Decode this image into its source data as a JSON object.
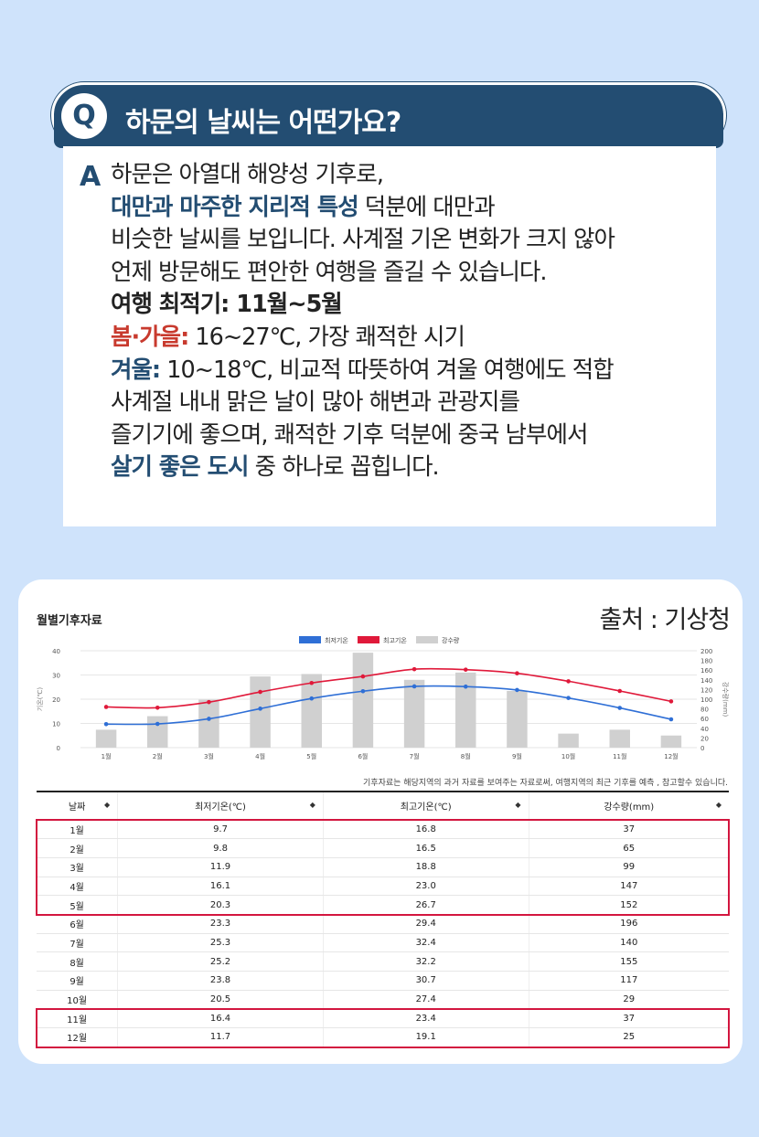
{
  "question": {
    "badge": "Q",
    "title": "하문의 날씨는 어떤가요?"
  },
  "answer": {
    "badge": "A",
    "line1": "하문은 아열대 해양성 기후로,",
    "line2_bold": "대만과 마주한 지리적 특성",
    "line2_rest": " 덕분에 대만과",
    "line3": "비슷한 날씨를 보입니다. 사계절 기온 변화가 크지 않아",
    "line4": "언제 방문해도 편안한 여행을 즐길 수 있습니다.",
    "line5": "여행 최적기: 11월~5월",
    "line6_bold": "봄·가을:",
    "line6_rest": " 16~27℃, 가장 쾌적한 시기",
    "line7_bold": "겨울:",
    "line7_rest": " 10~18℃, 비교적 따뜻하여 겨울 여행에도 적합",
    "line8": "사계절 내내 맑은 날이 많아 해변과 관광지를",
    "line9": "즐기기에 좋으며, 쾌적한 기후 덕분에 중국 남부에서",
    "line10_bold": "살기 좋은 도시",
    "line10_rest": " 중 하나로 꼽힙니다."
  },
  "chart_card": {
    "title": "월별기후자료",
    "source": "출처 : 기상청",
    "note": "기후자료는 해당지역의 과거 자료를 보여주는 자료로써, 여행지역의 최근 기후를 예측 , 참고할수 있습니다."
  },
  "colors": {
    "min_temp": "#2f6fd6",
    "max_temp": "#e0193a",
    "precip": "#d0d0d0",
    "navy": "#234d72",
    "highlight": "#d3163f"
  },
  "chart_data": {
    "type": "bar",
    "categories": [
      "1월",
      "2월",
      "3월",
      "4월",
      "5월",
      "6월",
      "7월",
      "8월",
      "9월",
      "10월",
      "11월",
      "12월"
    ],
    "series": [
      {
        "name": "최저기온",
        "type": "line",
        "axis": "left",
        "values": [
          9.7,
          9.8,
          11.9,
          16.1,
          20.3,
          23.3,
          25.3,
          25.2,
          23.8,
          20.5,
          16.4,
          11.7
        ]
      },
      {
        "name": "최고기온",
        "type": "line",
        "axis": "left",
        "values": [
          16.8,
          16.5,
          18.8,
          23.0,
          26.7,
          29.4,
          32.4,
          32.2,
          30.7,
          27.4,
          23.4,
          19.1
        ]
      },
      {
        "name": "강수량",
        "type": "bar",
        "axis": "right",
        "values": [
          37,
          65,
          99,
          147,
          152,
          196,
          140,
          155,
          117,
          29,
          37,
          25
        ]
      }
    ],
    "ylabel": "기온(℃)",
    "y2label": "강수량(mm)",
    "ylim": [
      0,
      40
    ],
    "y2lim": [
      0,
      200
    ],
    "yticks": [
      "0",
      "10",
      "20",
      "30",
      "40"
    ],
    "y2ticks": [
      "0",
      "20",
      "40",
      "60",
      "80",
      "100",
      "120",
      "140",
      "160",
      "180",
      "200"
    ],
    "legend_position": "top-center",
    "grid": true
  },
  "table": {
    "headers": [
      "날짜",
      "최저기온(℃)",
      "최고기온(℃)",
      "강수량(mm)"
    ],
    "sort_glyph": "◆",
    "rows": [
      [
        "1월",
        "9.7",
        "16.8",
        "37"
      ],
      [
        "2월",
        "9.8",
        "16.5",
        "65"
      ],
      [
        "3월",
        "11.9",
        "18.8",
        "99"
      ],
      [
        "4월",
        "16.1",
        "23.0",
        "147"
      ],
      [
        "5월",
        "20.3",
        "26.7",
        "152"
      ],
      [
        "6월",
        "23.3",
        "29.4",
        "196"
      ],
      [
        "7월",
        "25.3",
        "32.4",
        "140"
      ],
      [
        "8월",
        "25.2",
        "32.2",
        "155"
      ],
      [
        "9월",
        "23.8",
        "30.7",
        "117"
      ],
      [
        "10월",
        "20.5",
        "27.4",
        "29"
      ],
      [
        "11월",
        "16.4",
        "23.4",
        "37"
      ],
      [
        "12월",
        "11.7",
        "19.1",
        "25"
      ]
    ],
    "highlight_groups": [
      [
        0,
        4
      ],
      [
        10,
        11
      ]
    ]
  }
}
